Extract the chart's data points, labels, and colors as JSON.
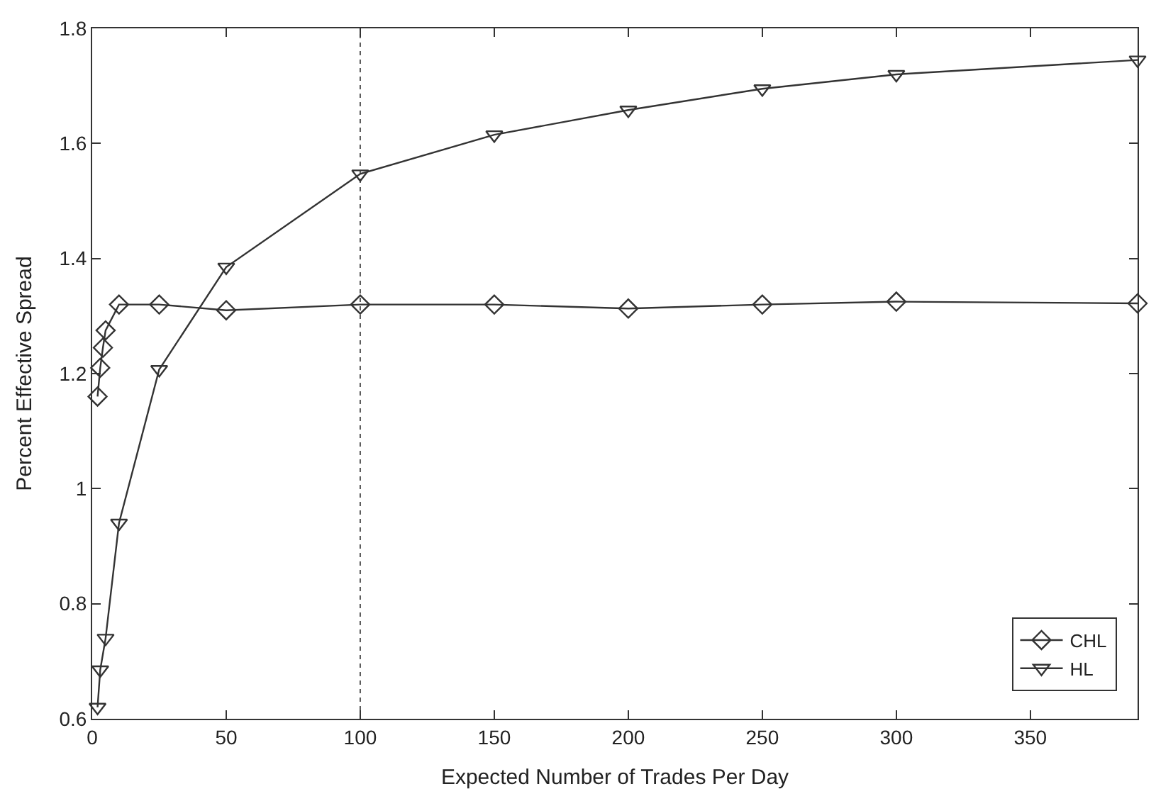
{
  "chart_data": {
    "type": "line",
    "xlabel": "Expected Number of Trades Per Day",
    "ylabel": "Percent Effective Spread",
    "xlim": [
      0,
      390
    ],
    "xticks": [
      0,
      50,
      100,
      150,
      200,
      250,
      300,
      350
    ],
    "ylim": [
      0.6,
      1.8
    ],
    "yticks": [
      0.6,
      0.8,
      {
        "value": 1,
        "label": "1"
      },
      1.2,
      1.4,
      1.6,
      1.8
    ],
    "grid": false,
    "legend": "bottom right",
    "ref_lines": [
      {
        "axis": "x",
        "value": 100,
        "color": "#555555",
        "line_style": "dotted"
      }
    ],
    "series": [
      {
        "name": "CHL",
        "color": "#333333",
        "marker": "diamond",
        "x": [
          2,
          3,
          4,
          5,
          10,
          25,
          50,
          100,
          150,
          200,
          250,
          300,
          390
        ],
        "values": [
          1.16,
          1.21,
          1.245,
          1.275,
          1.32,
          1.32,
          1.31,
          1.32,
          1.32,
          1.313,
          1.32,
          1.325,
          1.322
        ]
      },
      {
        "name": "HL",
        "color": "#333333",
        "marker": "triangle-down",
        "x": [
          2,
          3,
          5,
          10,
          25,
          50,
          100,
          150,
          200,
          250,
          300,
          390
        ],
        "values": [
          0.62,
          0.685,
          0.74,
          0.94,
          1.207,
          1.385,
          1.547,
          1.615,
          1.658,
          1.695,
          1.72,
          1.745
        ]
      }
    ]
  }
}
